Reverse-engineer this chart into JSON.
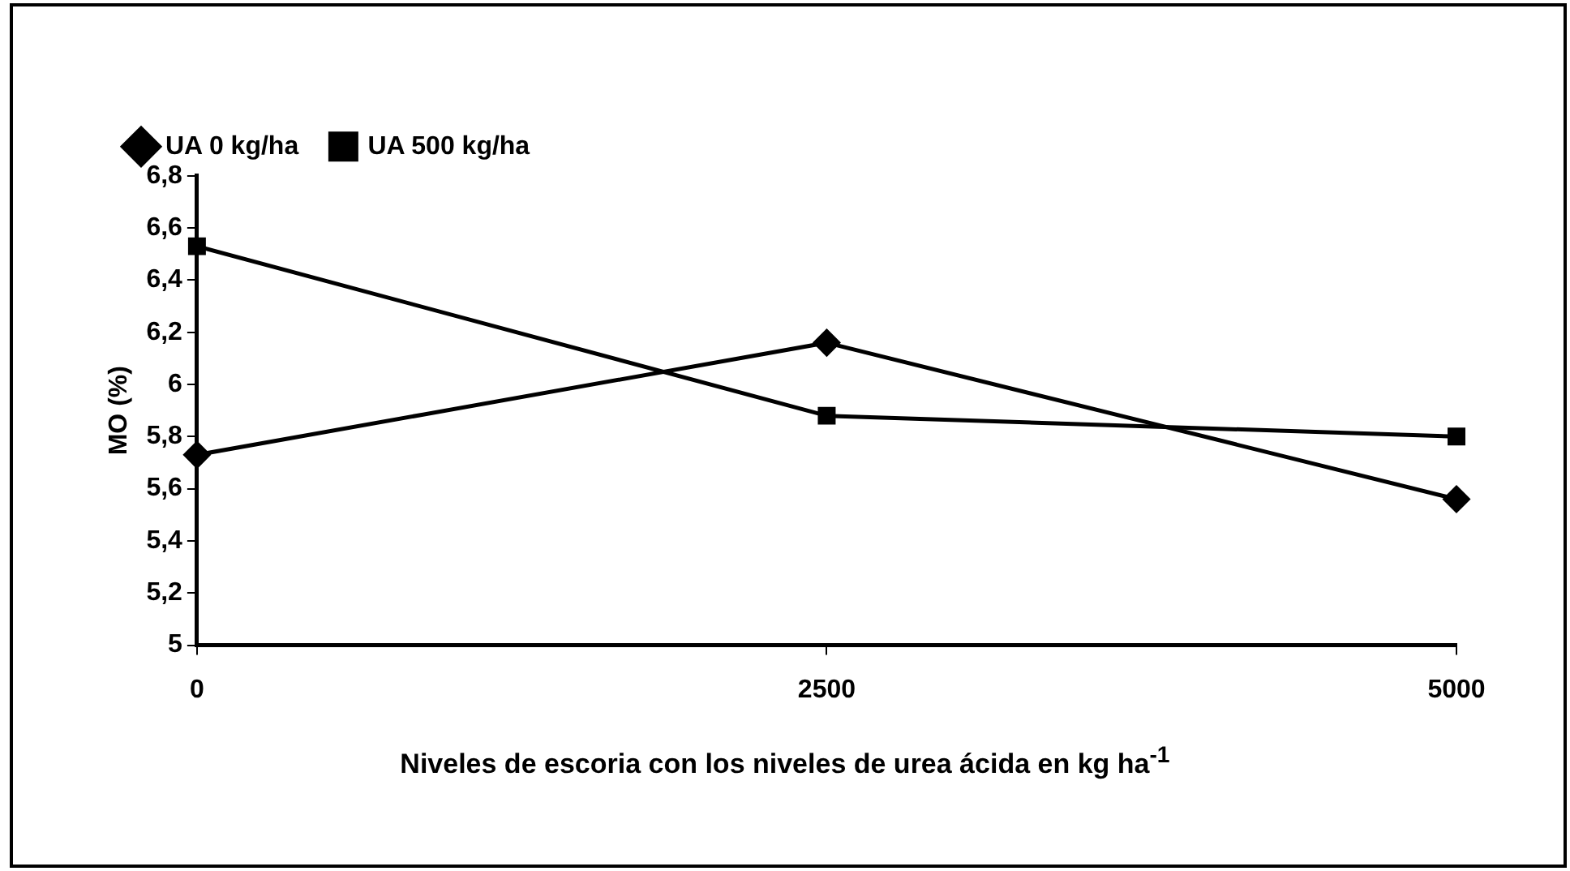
{
  "chart_data": {
    "type": "line",
    "xlabel": "Niveles de escoria con los niveles de urea ácida en kg ha$^{-1}$",
    "ylabel": "MO (%)",
    "x": [
      0,
      2500,
      5000
    ],
    "xlim": [
      0,
      5000
    ],
    "xticks": [
      0,
      2500,
      5000
    ],
    "ylim": [
      5,
      6.8
    ],
    "yticks": [
      {
        "value": 5,
        "label": "5"
      },
      {
        "value": 5.2,
        "label": "5,2"
      },
      {
        "value": 5.4,
        "label": "5,4"
      },
      {
        "value": 5.6,
        "label": "5,6"
      },
      {
        "value": 5.8,
        "label": "5,8"
      },
      {
        "value": 6,
        "label": "6"
      },
      {
        "value": 6.2,
        "label": "6,2"
      },
      {
        "value": 6.4,
        "label": "6,4"
      },
      {
        "value": 6.6,
        "label": "6,6"
      },
      {
        "value": 6.8,
        "label": "6,8"
      }
    ],
    "series": [
      {
        "name": "UA 0 kg/ha",
        "color": "#000000",
        "marker": "diamond",
        "values": [
          5.73,
          6.16,
          5.56
        ]
      },
      {
        "name": "UA 500 kg/ha",
        "color": "#000000",
        "marker": "square",
        "values": [
          6.53,
          5.88,
          5.8
        ]
      }
    ],
    "legend": "top left",
    "grid": false,
    "line_style": "solid"
  }
}
